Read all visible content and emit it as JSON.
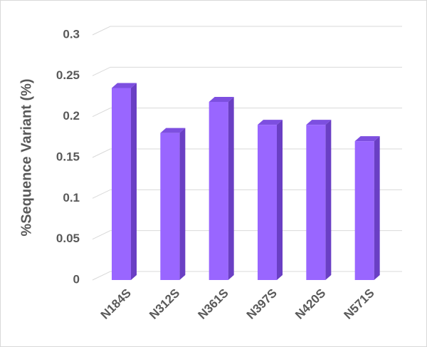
{
  "chart_data": {
    "type": "bar3d",
    "y_label": "%Sequence Variant (%)",
    "categories": [
      "N184S",
      "N312S",
      "N361S",
      "N397S",
      "N420S",
      "N571S"
    ],
    "values": [
      0.235,
      0.18,
      0.218,
      0.19,
      0.19,
      0.17
    ],
    "color": "#9966ff",
    "ylim": [
      0,
      0.3
    ],
    "yticks": [
      0,
      0.05,
      0.1,
      0.15,
      0.2,
      0.25,
      0.3
    ],
    "grid": true
  }
}
